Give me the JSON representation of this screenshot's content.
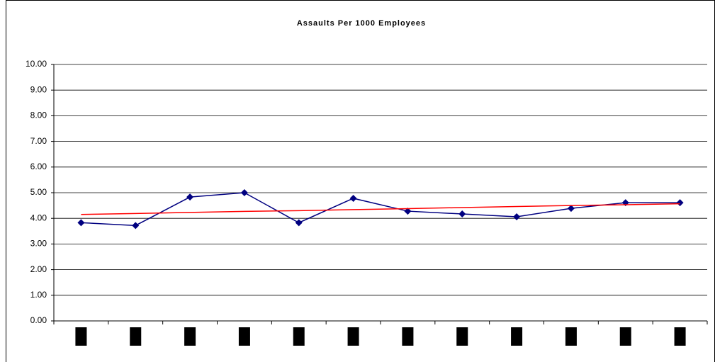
{
  "chart_data": {
    "type": "line",
    "title": "Assaults Per 1000 Employees",
    "categories": [
      null,
      null,
      null,
      null,
      null,
      null,
      null,
      null,
      null,
      null,
      null,
      null
    ],
    "series": [
      {
        "color": "#000080",
        "marker": "diamond",
        "values": [
          3.83,
          3.72,
          4.83,
          5.0,
          3.83,
          4.78,
          4.28,
          4.17,
          4.06,
          4.39,
          4.61,
          4.61
        ]
      },
      {
        "color": "#ff0000",
        "marker": null,
        "values": [
          4.15,
          4.19,
          4.23,
          4.27,
          4.3,
          4.34,
          4.38,
          4.42,
          4.46,
          4.5,
          4.53,
          4.57
        ]
      }
    ],
    "ylim": [
      0,
      10
    ],
    "yticks": [
      {
        "value": 0,
        "label": "0.00"
      },
      {
        "value": 1,
        "label": "1.00"
      },
      {
        "value": 2,
        "label": "2.00"
      },
      {
        "value": 3,
        "label": "3.00"
      },
      {
        "value": 4,
        "label": "4.00"
      },
      {
        "value": 5,
        "label": "5.00"
      },
      {
        "value": 6,
        "label": "6.00"
      },
      {
        "value": 7,
        "label": "7.00"
      },
      {
        "value": 8,
        "label": "8.00"
      },
      {
        "value": 9,
        "label": "9.00"
      },
      {
        "value": 10,
        "label": "10.00"
      }
    ],
    "grid": true
  }
}
